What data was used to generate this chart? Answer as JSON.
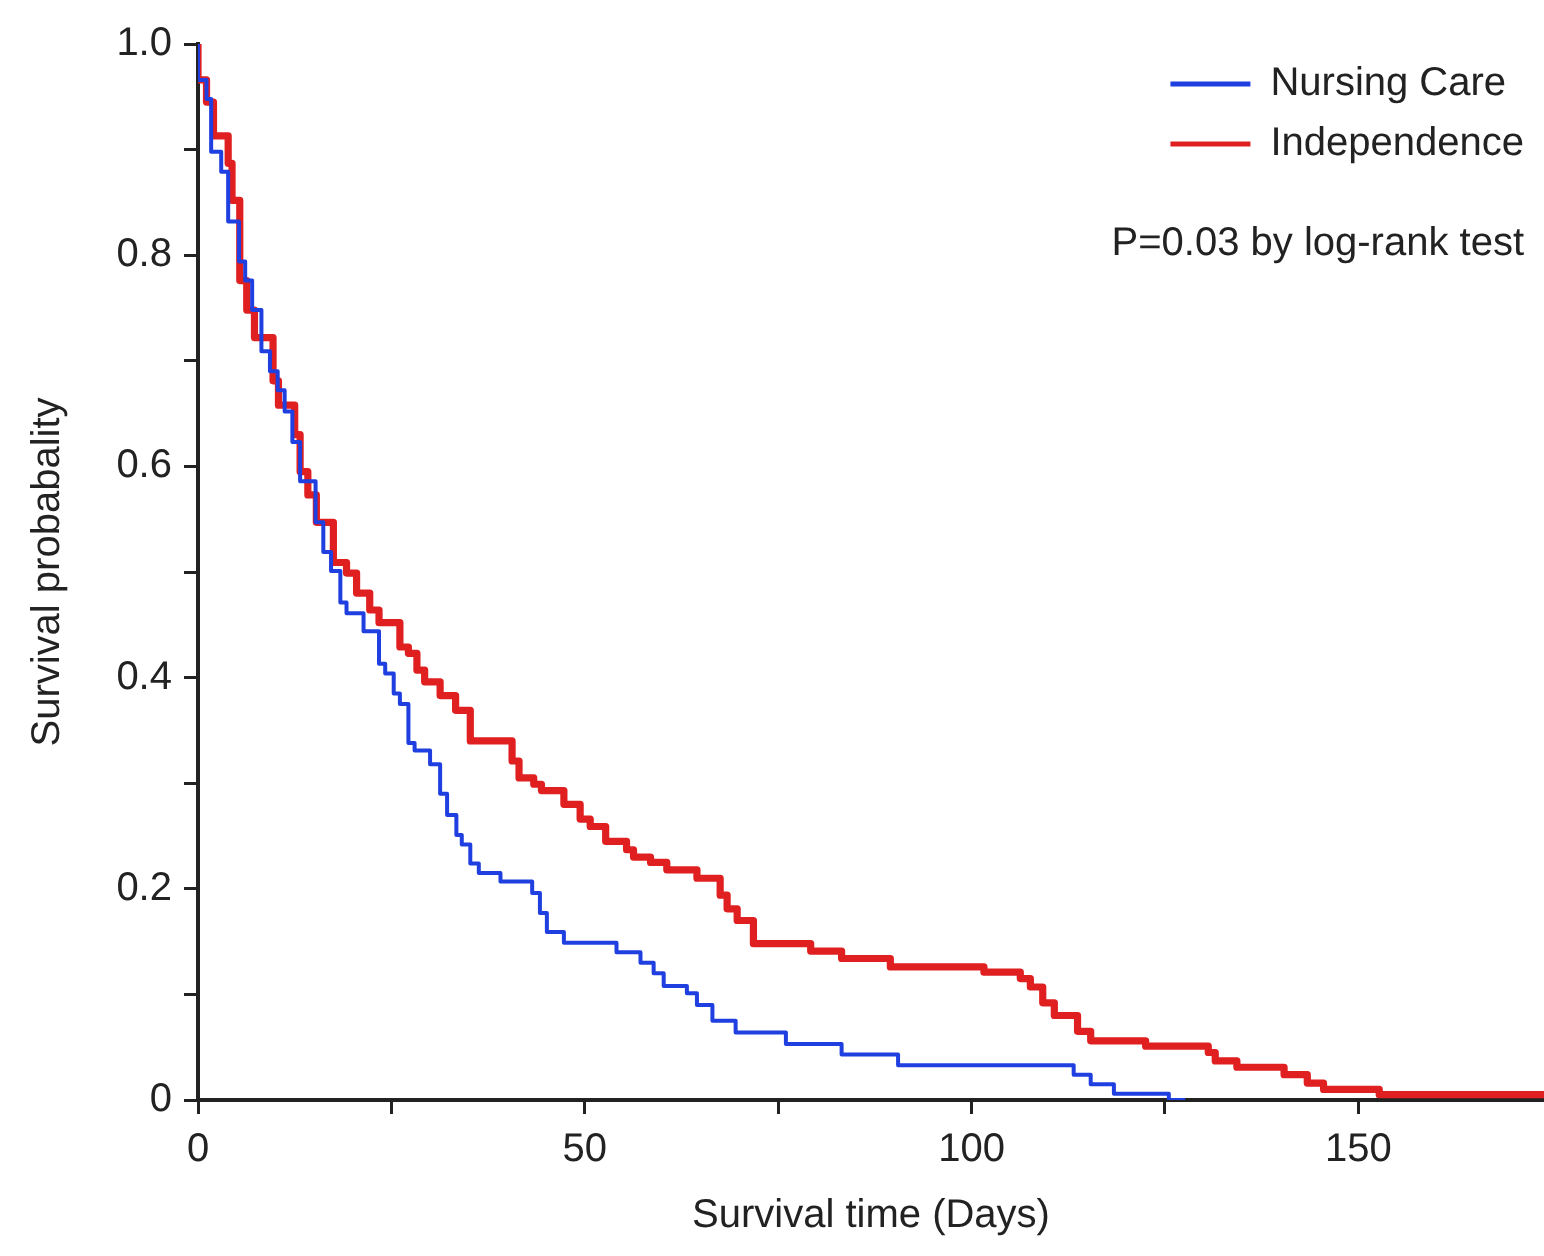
{
  "chart_data": {
    "type": "step",
    "xlabel": "Survival time (Days)",
    "ylabel": "Survival probabality",
    "xlim": [
      0,
      174
    ],
    "ylim": [
      0,
      1
    ],
    "xticks": [
      0,
      {
        "value": 25,
        "label": null
      },
      50,
      {
        "value": 75,
        "label": null
      },
      100,
      {
        "value": 125,
        "label": null
      },
      150
    ],
    "yticks": [
      0,
      {
        "value": 0.1,
        "label": null
      },
      0.2,
      {
        "value": 0.3,
        "label": null
      },
      0.4,
      {
        "value": 0.5,
        "label": null
      },
      0.6,
      {
        "value": 0.7,
        "label": null
      },
      0.8,
      {
        "value": 0.9,
        "label": null
      },
      {
        "value": 1,
        "label": "1.0"
      }
    ],
    "grid": false,
    "legend": "top right",
    "marker": "none",
    "line_style": "solid",
    "annotations": [
      "P=0.03 by log-rank test"
    ],
    "series": [
      {
        "name": "Nursing Care",
        "color": "#1f3fe0",
        "x": [
          0,
          1.1,
          1.7,
          3.0,
          3.9,
          5.3,
          6.1,
          7.0,
          8.2,
          9.3,
          10.3,
          11.2,
          12.2,
          13.2,
          15.2,
          16.2,
          17.2,
          18.4,
          19.2,
          21.4,
          23.4,
          24.2,
          25.3,
          26.1,
          27.2,
          28.0,
          30.0,
          31.3,
          32.2,
          33.4,
          34.1,
          35.2,
          36.3,
          39.1,
          43.2,
          44.2,
          45.1,
          47.3,
          54.1,
          57.2,
          58.9,
          60.2,
          63.2,
          64.5,
          66.5,
          69.5,
          76.0,
          83.2,
          90.5,
          113.2,
          115.4,
          118.4,
          125.5,
          127.6
        ],
        "values": [
          1.0,
          0.966,
          0.948,
          0.898,
          0.879,
          0.832,
          0.794,
          0.776,
          0.748,
          0.709,
          0.69,
          0.672,
          0.652,
          0.623,
          0.586,
          0.547,
          0.519,
          0.501,
          0.471,
          0.461,
          0.444,
          0.413,
          0.404,
          0.385,
          0.375,
          0.338,
          0.331,
          0.318,
          0.29,
          0.27,
          0.251,
          0.242,
          0.224,
          0.215,
          0.207,
          0.196,
          0.177,
          0.159,
          0.149,
          0.14,
          0.13,
          0.12,
          0.108,
          0.101,
          0.09,
          0.075,
          0.064,
          0.053,
          0.043,
          0.033,
          0.024,
          0.015,
          0.006,
          0.0
        ]
      },
      {
        "name": "Independence",
        "color": "#e02020",
        "x": [
          0,
          1.1,
          2.0,
          3.9,
          4.4,
          5.4,
          6.3,
          7.3,
          9.7,
          10.4,
          12.5,
          13.2,
          14.2,
          15.3,
          17.5,
          19.2,
          20.5,
          22.2,
          23.4,
          26.1,
          27.2,
          28.3,
          29.3,
          31.3,
          33.3,
          35.2,
          40.6,
          41.5,
          43.4,
          44.4,
          47.3,
          49.4,
          50.7,
          52.7,
          55.4,
          56.3,
          58.5,
          60.6,
          64.5,
          67.5,
          68.4,
          69.7,
          71.8,
          79.2,
          83.2,
          89.5,
          101.6,
          106.3,
          107.6,
          109.2,
          110.7,
          113.7,
          115.4,
          122.5,
          130.6,
          131.5,
          134.3,
          140.4,
          143.4,
          145.5,
          152.7,
          155.5,
          174
        ],
        "values": [
          1.0,
          0.966,
          0.945,
          0.913,
          0.887,
          0.852,
          0.776,
          0.748,
          0.722,
          0.681,
          0.658,
          0.63,
          0.595,
          0.573,
          0.547,
          0.509,
          0.499,
          0.48,
          0.464,
          0.452,
          0.429,
          0.423,
          0.407,
          0.396,
          0.383,
          0.369,
          0.34,
          0.321,
          0.305,
          0.299,
          0.293,
          0.28,
          0.266,
          0.259,
          0.245,
          0.237,
          0.23,
          0.225,
          0.218,
          0.21,
          0.194,
          0.181,
          0.17,
          0.148,
          0.141,
          0.134,
          0.126,
          0.121,
          0.115,
          0.107,
          0.092,
          0.08,
          0.065,
          0.056,
          0.051,
          0.045,
          0.037,
          0.031,
          0.024,
          0.016,
          0.01,
          0.005,
          0.005
        ]
      }
    ]
  }
}
